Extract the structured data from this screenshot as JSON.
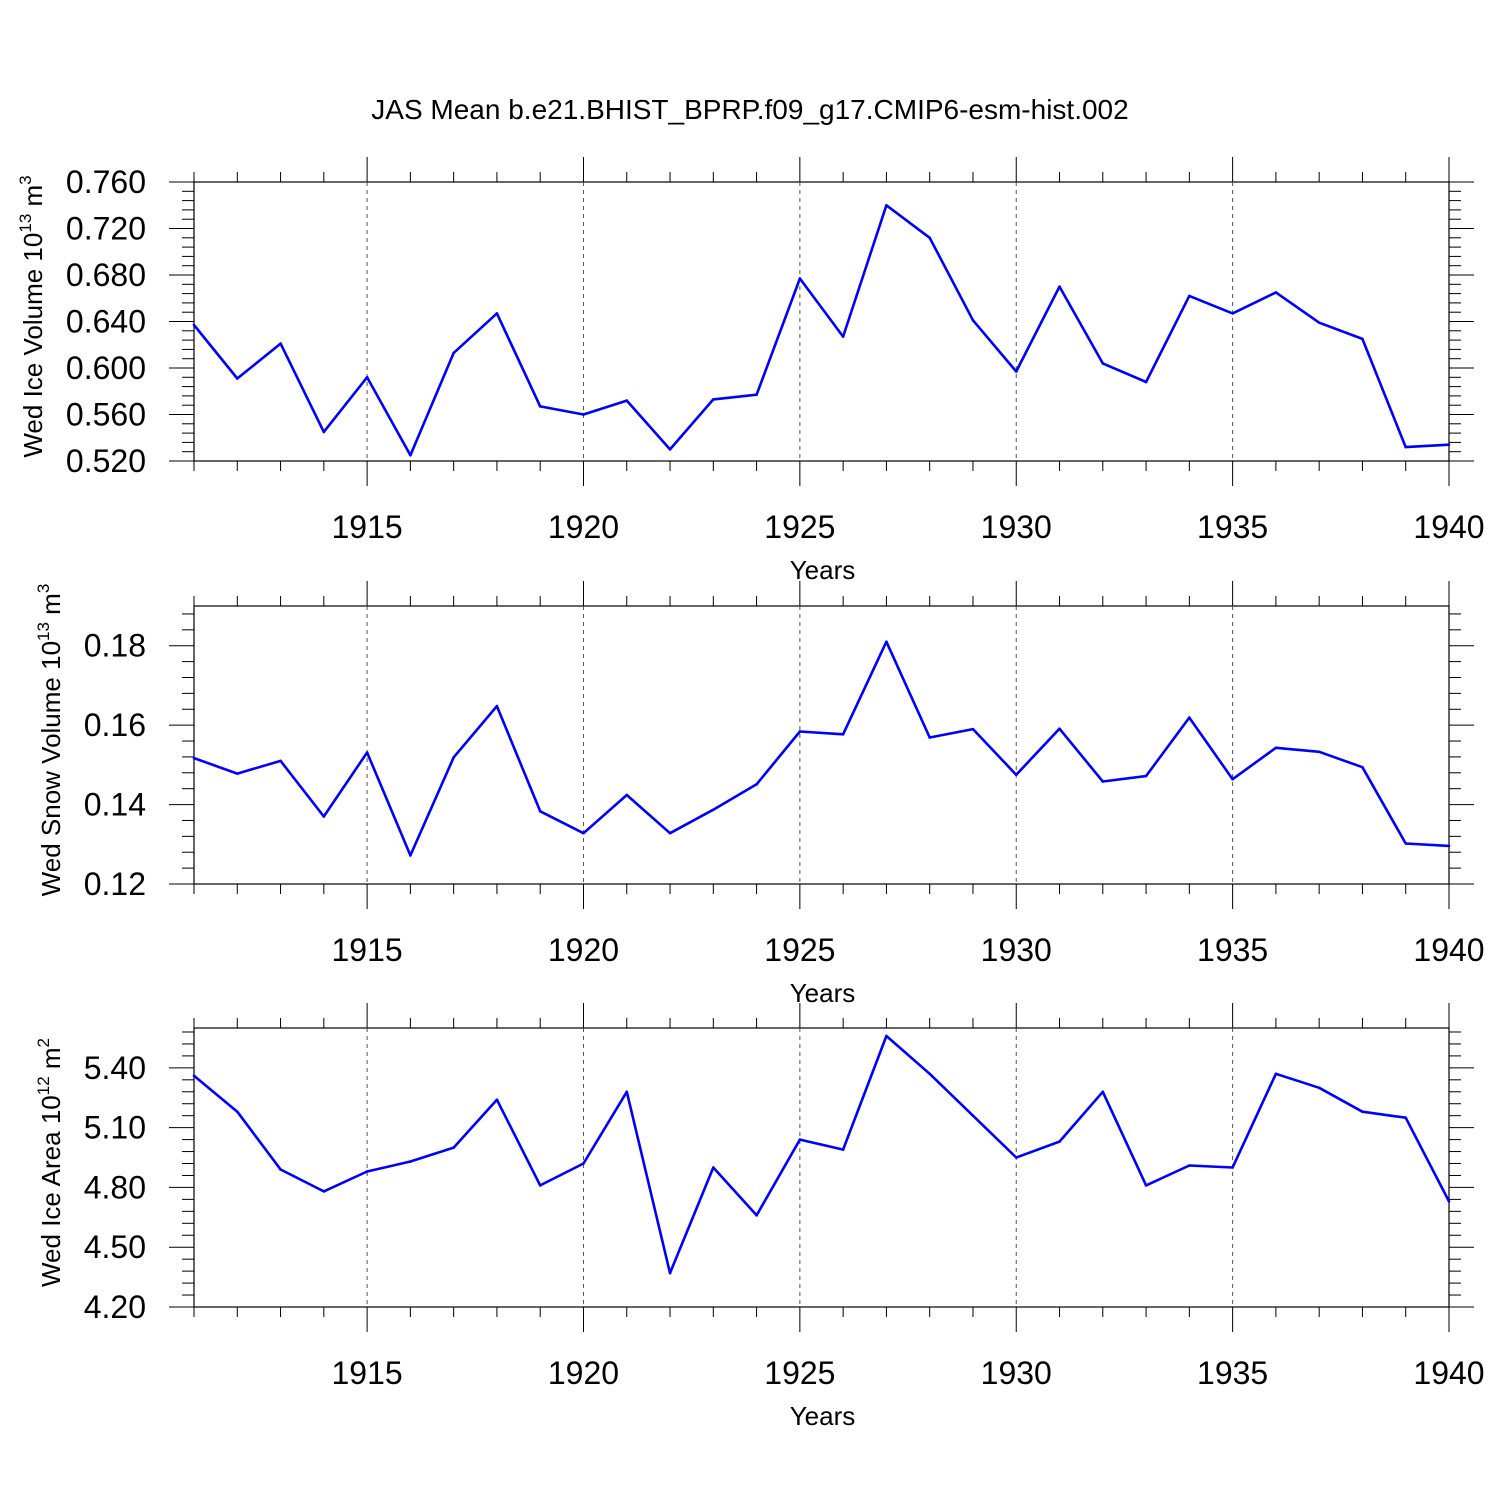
{
  "title": "JAS Mean b.e21.BHIST_BPRP.f09_g17.CMIP6-esm-hist.002",
  "line_color": "#0000ff",
  "chart_data": [
    {
      "type": "line",
      "ylabel": {
        "text": "Wed Ice Volume 10",
        "sup": "13",
        "unit": " m",
        "unit_sup": "3"
      },
      "xlabel": "Years",
      "xlim": [
        1911,
        1940
      ],
      "ylim": [
        0.52,
        0.76
      ],
      "xticks": [
        1915,
        1920,
        1925,
        1930,
        1935,
        1940
      ],
      "yticks": [
        0.52,
        0.56,
        0.6,
        0.64,
        0.68,
        0.72,
        0.76
      ],
      "ytick_labels": [
        "0.520",
        "0.560",
        "0.600",
        "0.640",
        "0.680",
        "0.720",
        "0.760"
      ],
      "x": [
        1911,
        1912,
        1913,
        1914,
        1915,
        1916,
        1917,
        1918,
        1919,
        1920,
        1921,
        1922,
        1923,
        1924,
        1925,
        1926,
        1927,
        1928,
        1929,
        1930,
        1931,
        1932,
        1933,
        1934,
        1935,
        1936,
        1937,
        1938,
        1939,
        1940
      ],
      "y": [
        0.637,
        0.591,
        0.621,
        0.545,
        0.592,
        0.525,
        0.613,
        0.647,
        0.567,
        0.56,
        0.572,
        0.53,
        0.573,
        0.577,
        0.677,
        0.627,
        0.74,
        0.712,
        0.641,
        0.597,
        0.67,
        0.604,
        0.588,
        0.662,
        0.647,
        0.665,
        0.639,
        0.625,
        0.532,
        0.534
      ]
    },
    {
      "type": "line",
      "ylabel": {
        "text": "Wed Snow Volume 10",
        "sup": "13",
        "unit": " m",
        "unit_sup": "3"
      },
      "xlabel": "Years",
      "xlim": [
        1911,
        1940
      ],
      "ylim": [
        0.12,
        0.19
      ],
      "xticks": [
        1915,
        1920,
        1925,
        1930,
        1935,
        1940
      ],
      "yticks": [
        0.12,
        0.14,
        0.16,
        0.18
      ],
      "ytick_labels": [
        "0.12",
        "0.14",
        "0.16",
        "0.18"
      ],
      "x": [
        1911,
        1912,
        1913,
        1914,
        1915,
        1916,
        1917,
        1918,
        1919,
        1920,
        1921,
        1922,
        1923,
        1924,
        1925,
        1926,
        1927,
        1928,
        1929,
        1930,
        1931,
        1932,
        1933,
        1934,
        1935,
        1936,
        1937,
        1938,
        1939,
        1940
      ],
      "y": [
        0.1517,
        0.1478,
        0.151,
        0.137,
        0.1531,
        0.1272,
        0.1519,
        0.1648,
        0.1383,
        0.1328,
        0.1424,
        0.1328,
        0.1387,
        0.1451,
        0.1584,
        0.1577,
        0.181,
        0.1569,
        0.159,
        0.1475,
        0.1591,
        0.1458,
        0.1472,
        0.1619,
        0.1464,
        0.1543,
        0.1533,
        0.1494,
        0.1302,
        0.1296
      ]
    },
    {
      "type": "line",
      "ylabel": {
        "text": "Wed Ice Area 10",
        "sup": "12",
        "unit": " m",
        "unit_sup": "2"
      },
      "xlabel": "Years",
      "xlim": [
        1911,
        1940
      ],
      "ylim": [
        4.2,
        5.6
      ],
      "xticks": [
        1915,
        1920,
        1925,
        1930,
        1935,
        1940
      ],
      "yticks": [
        4.2,
        4.5,
        4.8,
        5.1,
        5.4
      ],
      "ytick_labels": [
        "4.20",
        "4.50",
        "4.80",
        "5.10",
        "5.40"
      ],
      "x": [
        1911,
        1912,
        1913,
        1914,
        1915,
        1916,
        1917,
        1918,
        1919,
        1920,
        1921,
        1922,
        1923,
        1924,
        1925,
        1926,
        1927,
        1928,
        1929,
        1930,
        1931,
        1932,
        1933,
        1934,
        1935,
        1936,
        1937,
        1938,
        1939,
        1940
      ],
      "y": [
        5.36,
        5.18,
        4.89,
        4.78,
        4.88,
        4.93,
        5.0,
        5.24,
        4.81,
        4.92,
        5.28,
        4.37,
        4.9,
        4.66,
        5.04,
        4.99,
        5.56,
        5.37,
        5.16,
        4.95,
        5.03,
        5.28,
        4.81,
        4.91,
        4.9,
        5.37,
        5.3,
        5.18,
        5.15,
        4.73
      ]
    }
  ]
}
